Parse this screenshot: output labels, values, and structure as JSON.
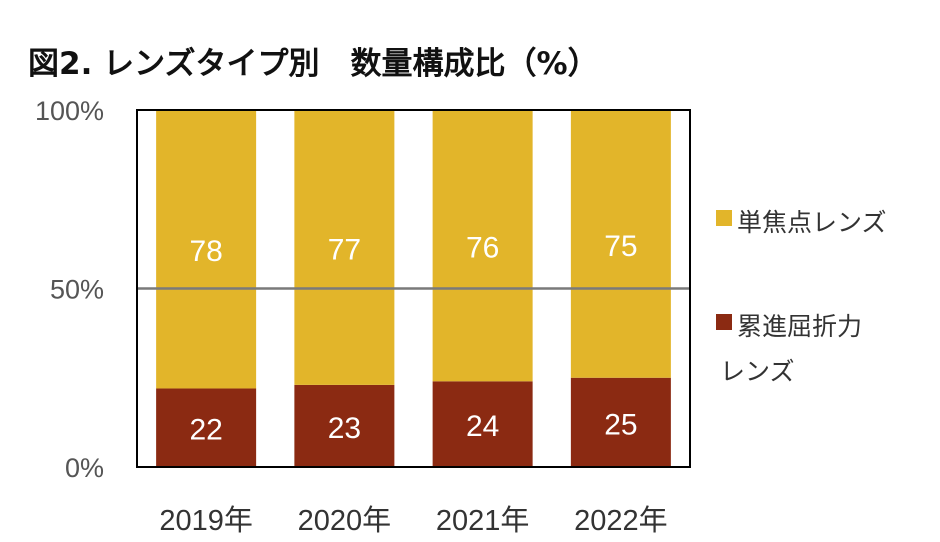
{
  "title": "図2. レンズタイプ別　数量構成比（%）",
  "chart_data": {
    "type": "bar",
    "stacked": true,
    "categories": [
      "2019年",
      "2020年",
      "2021年",
      "2022年"
    ],
    "series": [
      {
        "name": "累進屈折力レンズ",
        "values": [
          22,
          23,
          24,
          25
        ],
        "color": "#8B2A12"
      },
      {
        "name": "単焦点レンズ",
        "values": [
          78,
          77,
          76,
          75
        ],
        "color": "#E2B52A"
      }
    ],
    "y_ticks": [
      "0%",
      "50%",
      "100%"
    ],
    "ylim": [
      0,
      100
    ],
    "grid": true,
    "legend_position": "right"
  },
  "legend": {
    "items": [
      {
        "label_lines": [
          "単焦点レンズ"
        ],
        "color": "#E2B52A"
      },
      {
        "label_lines": [
          "累進屈折力",
          "レンズ"
        ],
        "color": "#8B2A12"
      }
    ]
  }
}
